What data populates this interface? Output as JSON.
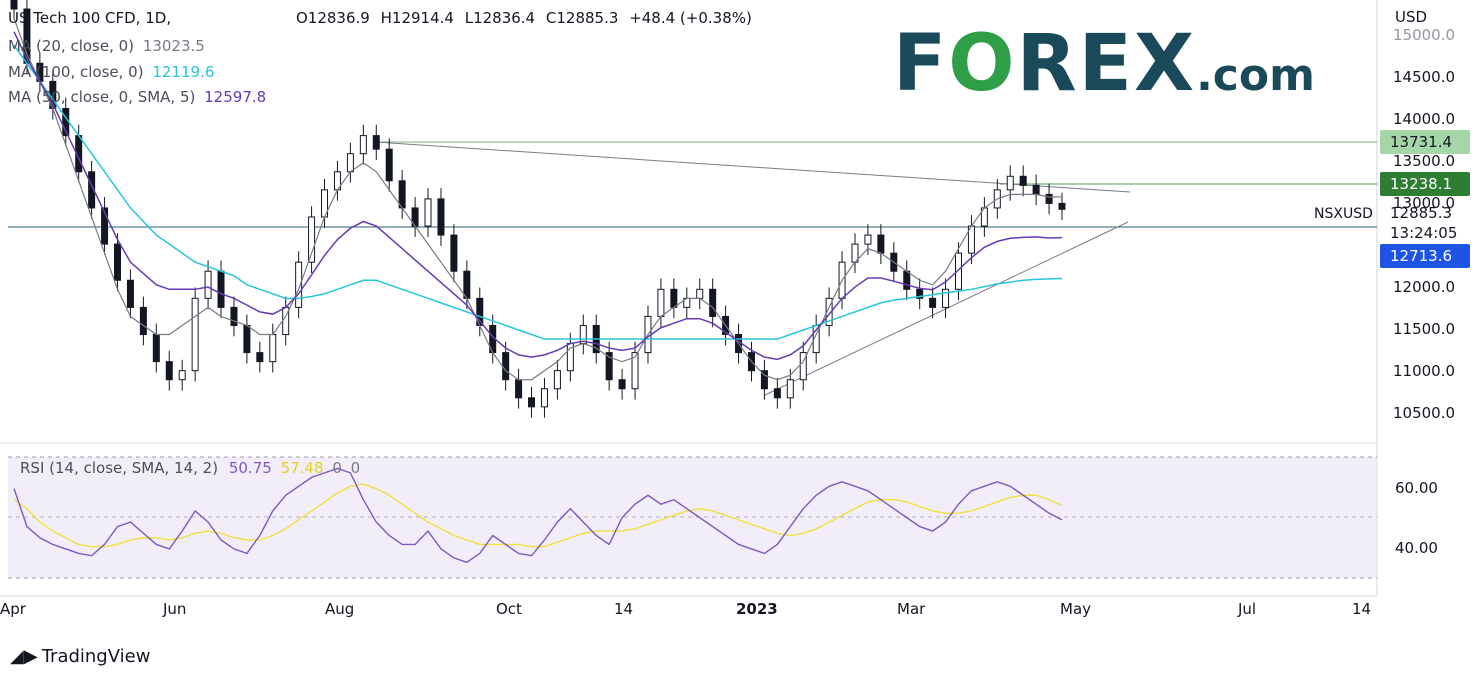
{
  "header": {
    "symbol_title": "US Tech 100 CFD, 1D,",
    "open": "O12836.9",
    "high": "H12914.4",
    "low": "L12836.4",
    "close": "C12885.3",
    "change": "+48.4 (+0.38%)"
  },
  "indicators": [
    {
      "label": "MA (20, close, 0)",
      "value": "13023.5",
      "color": "#787b86"
    },
    {
      "label": "MA (100, close, 0)",
      "value": "12119.6",
      "color": "#26c6da"
    },
    {
      "label": "MA (50, close, 0, SMA, 5)",
      "value": "12597.8",
      "color": "#673ab7"
    }
  ],
  "rsi": {
    "label": "RSI (14, close, SMA, 14, 2)",
    "value": "50.75",
    "sma": "57.48",
    "extra1": "0",
    "extra2": "0",
    "line_color": "#7e57c2",
    "sma_color": "#f0e040"
  },
  "price_axis": {
    "currency": "USD",
    "ticks": [
      "15000.0",
      "14500.0",
      "14000.0",
      "13500.0",
      "13000.0",
      "12000.0",
      "11500.0",
      "11000.0",
      "10500.0"
    ],
    "labels": [
      {
        "text": "13731.4",
        "bg": "#a5d6a7",
        "color": "#131722"
      },
      {
        "text": "13238.1",
        "bg": "#2e7d32",
        "color": "#ffffff"
      },
      {
        "text": "12885.3",
        "bg": "#ffffff",
        "color": "#131722"
      },
      {
        "text": "13:24:05",
        "bg": "#ffffff",
        "color": "#131722"
      },
      {
        "text": "12713.6",
        "bg": "#1e53e5",
        "color": "#ffffff"
      }
    ],
    "symbol_tag": "NSXUSD"
  },
  "rsi_axis": {
    "ticks": [
      "60.00",
      "40.00"
    ]
  },
  "time_axis": {
    "labels": [
      "Apr",
      "Jun",
      "Aug",
      "Oct",
      "14",
      "2023",
      "Mar",
      "May",
      "Jul",
      "14"
    ]
  },
  "branding": {
    "logo_main": "F",
    "logo_o": "O",
    "logo_rest": "REX",
    "logo_dot": ".com",
    "tradingview": "TradingView",
    "brand_color": "#1a4a5a",
    "accent": "#2e9e47"
  },
  "chart_data": {
    "type": "candlestick",
    "title": "US Tech 100 CFD, 1D",
    "ylim": [
      10300,
      15200
    ],
    "trend_lines": [
      {
        "name": "resistance",
        "from": [
          0.38,
          13760
        ],
        "to": [
          1.0,
          13350
        ]
      },
      {
        "name": "support",
        "from": [
          0.52,
          10700
        ],
        "to": [
          1.0,
          12960
        ]
      }
    ],
    "horizontal_levels": [
      13731.4,
      13238.1,
      12885.3
    ],
    "rsi_levels": [
      70,
      30
    ],
    "series": [
      {
        "name": "close",
        "values": [
          15100,
          14500,
          14300,
          14000,
          13700,
          13300,
          12900,
          12500,
          12100,
          11800,
          11500,
          11200,
          11000,
          11100,
          11900,
          12200,
          11800,
          11600,
          11300,
          11200,
          11500,
          11800,
          12300,
          12800,
          13100,
          13300,
          13500,
          13700,
          13550,
          13200,
          12900,
          12700,
          13000,
          12600,
          12200,
          11900,
          11600,
          11300,
          11000,
          10800,
          10700,
          10900,
          11100,
          11400,
          11600,
          11300,
          11000,
          10900,
          11300,
          11700,
          12000,
          11800,
          11900,
          12000,
          11700,
          11500,
          11300,
          11100,
          10900,
          10800,
          11000,
          11300,
          11600,
          11900,
          12300,
          12500,
          12600,
          12400,
          12200,
          12000,
          11900,
          11800,
          12000,
          12400,
          12700,
          12900,
          13100,
          13250,
          13150,
          13050,
          12950,
          12885
        ]
      },
      {
        "name": "MA20",
        "values": [
          15000,
          14600,
          14300,
          14000,
          13600,
          13200,
          12800,
          12400,
          12000,
          11700,
          11600,
          11500,
          11500,
          11600,
          11700,
          11800,
          11700,
          11650,
          11600,
          11500,
          11500,
          11700,
          12000,
          12400,
          12800,
          13100,
          13300,
          13400,
          13300,
          13100,
          12900,
          12700,
          12500,
          12300,
          12100,
          11900,
          11600,
          11300,
          11100,
          11000,
          11000,
          11100,
          11200,
          11350,
          11400,
          11350,
          11250,
          11200,
          11250,
          11500,
          11700,
          11800,
          11900,
          11900,
          11800,
          11600,
          11400,
          11200,
          11050,
          11000,
          11050,
          11200,
          11500,
          11800,
          12100,
          12300,
          12450,
          12400,
          12300,
          12200,
          12100,
          12050,
          12200,
          12450,
          12700,
          12900,
          13000,
          13050,
          13050,
          13050,
          13020,
          13023
        ]
      },
      {
        "name": "MA100",
        "values": [
          14700,
          14500,
          14300,
          14100,
          13900,
          13700,
          13500,
          13300,
          13100,
          12900,
          12750,
          12600,
          12500,
          12400,
          12300,
          12250,
          12200,
          12150,
          12050,
          12000,
          11950,
          11900,
          11900,
          11920,
          11950,
          12000,
          12050,
          12100,
          12100,
          12050,
          12000,
          11950,
          11900,
          11850,
          11800,
          11750,
          11700,
          11650,
          11600,
          11550,
          11500,
          11450,
          11450,
          11450,
          11450,
          11450,
          11450,
          11450,
          11450,
          11450,
          11450,
          11450,
          11450,
          11450,
          11450,
          11450,
          11450,
          11450,
          11450,
          11450,
          11500,
          11550,
          11600,
          11650,
          11700,
          11750,
          11800,
          11850,
          11880,
          11900,
          11920,
          11940,
          11960,
          11980,
          12000,
          12030,
          12060,
          12080,
          12100,
          12110,
          12115,
          12120
        ]
      },
      {
        "name": "RSI",
        "values": [
          65,
          48,
          43,
          40,
          38,
          36,
          35,
          40,
          48,
          50,
          45,
          40,
          38,
          46,
          55,
          50,
          42,
          38,
          36,
          44,
          55,
          62,
          66,
          70,
          72,
          74,
          72,
          60,
          50,
          44,
          40,
          40,
          46,
          38,
          34,
          32,
          36,
          44,
          40,
          36,
          35,
          42,
          50,
          56,
          50,
          44,
          40,
          52,
          58,
          62,
          58,
          60,
          56,
          52,
          48,
          44,
          40,
          38,
          36,
          40,
          48,
          56,
          62,
          66,
          68,
          66,
          64,
          60,
          56,
          52,
          48,
          46,
          50,
          58,
          64,
          66,
          68,
          66,
          62,
          58,
          54,
          51
        ]
      },
      {
        "name": "RSI_SMA",
        "values": [
          60,
          56,
          50,
          46,
          43,
          40,
          39,
          39,
          40,
          42,
          43,
          43,
          42,
          43,
          45,
          46,
          45,
          43,
          42,
          42,
          44,
          47,
          51,
          55,
          59,
          63,
          66,
          67,
          65,
          62,
          58,
          54,
          50,
          47,
          44,
          42,
          40,
          40,
          40,
          40,
          39,
          39,
          41,
          43,
          45,
          46,
          46,
          46,
          47,
          49,
          51,
          53,
          55,
          56,
          55,
          53,
          51,
          49,
          47,
          45,
          44,
          45,
          47,
          50,
          53,
          56,
          59,
          60,
          60,
          59,
          57,
          55,
          54,
          54,
          55,
          57,
          59,
          61,
          62,
          62,
          60,
          57.48
        ]
      }
    ]
  }
}
